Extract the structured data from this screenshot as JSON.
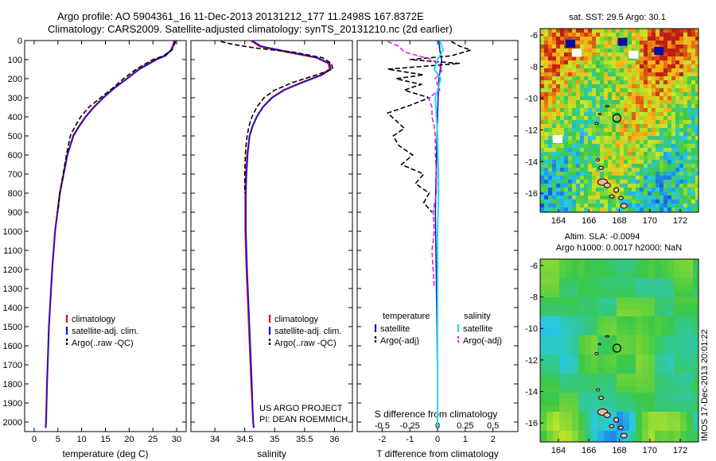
{
  "header": {
    "line1": "Argo profile: AO 5904361_16 11-Dec-2013 20131212_177 11.2498S 167.8372E",
    "line2": "Climatology: CARS2009. Satellite-adjusted climatology: synTS_20131210.nc (2d earlier)"
  },
  "stamp": "IMOS 17-Dec-2013 20:01:22",
  "colors": {
    "climatology": "#e01010",
    "satellite": "#1010e0",
    "argo": "#000000",
    "salinity_satellite": "#20e0e0",
    "salinity_argo": "#e020e0"
  },
  "chart_data": [
    {
      "id": "temperature",
      "type": "line",
      "xlabel": "temperature (deg C)",
      "ylabel": "",
      "xlim": [
        -2,
        32
      ],
      "ylim": [
        2050,
        0
      ],
      "xticks": [
        0,
        5,
        10,
        15,
        20,
        25,
        30
      ],
      "yticks": [
        0,
        100,
        200,
        300,
        400,
        500,
        600,
        700,
        800,
        900,
        1000,
        1100,
        1200,
        1300,
        1400,
        1500,
        1600,
        1700,
        1800,
        1900,
        2000
      ],
      "legend": {
        "placement": "lower-center",
        "entries": [
          "climatology",
          "satellite-adj. clim.",
          "Argo(..raw -QC)"
        ]
      },
      "series": [
        {
          "name": "climatology",
          "depth": [
            0,
            20,
            50,
            80,
            100,
            150,
            200,
            250,
            300,
            350,
            400,
            450,
            500,
            600,
            700,
            800,
            1000,
            1200,
            1500,
            1800,
            2000,
            2030
          ],
          "values": [
            29.5,
            29.3,
            28.8,
            27.5,
            25.5,
            22.0,
            19.5,
            16.8,
            14.5,
            12.5,
            10.8,
            9.4,
            8.2,
            7.0,
            6.2,
            5.4,
            4.4,
            3.8,
            3.1,
            2.7,
            2.5,
            2.4
          ]
        },
        {
          "name": "satellite-adj. clim.",
          "depth": [
            0,
            20,
            50,
            80,
            100,
            150,
            200,
            250,
            300,
            350,
            400,
            450,
            500,
            600,
            700,
            800,
            1000,
            1200,
            1500,
            1800,
            2000,
            2030
          ],
          "values": [
            29.6,
            29.4,
            28.9,
            27.7,
            25.8,
            22.2,
            19.6,
            16.9,
            14.6,
            12.6,
            10.9,
            9.5,
            8.3,
            7.0,
            6.2,
            5.4,
            4.4,
            3.8,
            3.1,
            2.7,
            2.5,
            2.4
          ]
        },
        {
          "name": "Argo(..raw -QC)",
          "depth": [
            5,
            20,
            50,
            80,
            100,
            150,
            200,
            250,
            300,
            350,
            400,
            450,
            500,
            600,
            700,
            800,
            900
          ],
          "values": [
            29.8,
            29.5,
            29.0,
            27.2,
            25.0,
            21.5,
            18.8,
            16.5,
            14.0,
            11.5,
            9.8,
            8.6,
            7.6,
            6.8,
            6.1,
            5.4,
            5.0
          ]
        }
      ]
    },
    {
      "id": "salinity",
      "type": "line",
      "xlabel": "salinity",
      "ylabel": "",
      "xlim": [
        33.6,
        36.3
      ],
      "ylim": [
        2050,
        0
      ],
      "xticks": [
        34,
        34.5,
        35,
        35.5,
        36
      ],
      "legend": {
        "placement": "lower-right",
        "entries": [
          "climatology",
          "satellite-adj. clim.",
          "Argo(..raw -QC)"
        ]
      },
      "annotation": [
        "US ARGO PROJECT",
        "PI: DEAN ROEMMICH"
      ],
      "series": [
        {
          "name": "climatology",
          "depth": [
            0,
            30,
            60,
            90,
            120,
            150,
            180,
            220,
            260,
            300,
            350,
            400,
            450,
            500,
            600,
            700,
            800,
            1000,
            1200,
            1500,
            1800,
            2000,
            2030
          ],
          "values": [
            34.6,
            34.75,
            35.2,
            35.7,
            35.9,
            35.92,
            35.78,
            35.45,
            35.15,
            34.95,
            34.8,
            34.7,
            34.63,
            34.58,
            34.54,
            34.52,
            34.51,
            34.51,
            34.53,
            34.57,
            34.61,
            34.64,
            34.65
          ]
        },
        {
          "name": "satellite-adj. clim.",
          "depth": [
            0,
            30,
            60,
            90,
            120,
            150,
            180,
            220,
            260,
            300,
            350,
            400,
            450,
            500,
            600,
            700,
            800,
            1000,
            1200,
            1500,
            1800,
            2000,
            2030
          ],
          "values": [
            34.62,
            34.78,
            35.25,
            35.72,
            35.92,
            35.94,
            35.8,
            35.47,
            35.16,
            34.96,
            34.8,
            34.7,
            34.63,
            34.58,
            34.55,
            34.53,
            34.52,
            34.52,
            34.54,
            34.58,
            34.62,
            34.64,
            34.65
          ]
        },
        {
          "name": "Argo(..raw -QC)",
          "depth": [
            5,
            20,
            40,
            60,
            90,
            120,
            150,
            180,
            220,
            260,
            300,
            350,
            400,
            450,
            500,
            550,
            600,
            700,
            800
          ],
          "values": [
            34.1,
            34.3,
            34.7,
            35.3,
            35.8,
            35.95,
            35.97,
            35.7,
            35.3,
            35.0,
            34.82,
            34.7,
            34.62,
            34.57,
            34.54,
            34.52,
            34.51,
            34.5,
            34.5
          ]
        }
      ]
    },
    {
      "id": "difference",
      "type": "line",
      "xlabel": "T difference from climatology",
      "xlabel2": "S difference from climatology",
      "xlim": [
        -2.9,
        2.9
      ],
      "ylim": [
        2050,
        0
      ],
      "xticks": [
        -2,
        -1,
        0,
        1,
        2
      ],
      "xticks2_labels": [
        "-0.5",
        "-0.25",
        "0",
        "0.25",
        "0.5"
      ],
      "legend": {
        "placement": "lower-center",
        "temperature_title": "temperature",
        "salinity_title": "salinity",
        "entries": [
          "satellite",
          "Argo(-adj)",
          "satellite",
          "Argo(-adj)"
        ]
      },
      "series": [
        {
          "name": "temperature satellite",
          "depth": [
            0,
            50,
            100,
            150,
            200,
            300,
            400,
            500,
            700,
            900,
            1200,
            1500,
            1800,
            2030
          ],
          "values": [
            0.05,
            0.08,
            0.15,
            0.1,
            0.05,
            0.02,
            0.0,
            -0.02,
            -0.05,
            -0.08,
            -0.05,
            -0.02,
            0.0,
            0.0
          ]
        },
        {
          "name": "temperature Argo(-adj)",
          "depth": [
            5,
            30,
            50,
            80,
            100,
            120,
            150,
            180,
            200,
            230,
            260,
            300,
            340,
            380,
            420,
            460,
            500,
            550,
            600,
            650,
            700,
            750,
            800,
            850,
            900
          ],
          "values": [
            0.5,
            0.8,
            1.2,
            0.5,
            -1.0,
            0.8,
            -1.8,
            -0.5,
            -1.5,
            -0.6,
            -1.2,
            -0.3,
            -1.0,
            -1.8,
            -1.5,
            -1.2,
            -1.6,
            -1.4,
            -0.9,
            -1.3,
            -0.5,
            -0.8,
            -0.3,
            -0.5,
            -0.2
          ]
        },
        {
          "name": "salinity satellite",
          "depth": [
            0,
            50,
            100,
            150,
            200,
            300,
            500,
            800,
            1000,
            1500,
            2030
          ],
          "values": [
            0.02,
            0.05,
            0.0,
            -0.03,
            0.03,
            -0.02,
            0.0,
            0.01,
            0.0,
            0.0,
            0.0
          ]
        },
        {
          "name": "salinity Argo(-adj)",
          "depth": [
            5,
            30,
            60,
            100,
            150,
            200,
            260,
            300,
            350,
            400,
            450,
            500,
            600,
            700,
            800,
            900,
            1000,
            1100,
            1200,
            1300
          ],
          "values": [
            -0.45,
            -0.35,
            -0.3,
            -0.05,
            0.05,
            -0.02,
            0.02,
            -0.08,
            -0.05,
            -0.05,
            -0.03,
            -0.02,
            -0.02,
            -0.01,
            -0.01,
            -0.04,
            -0.03,
            -0.05,
            -0.04,
            -0.03
          ]
        }
      ]
    },
    {
      "id": "sst-map",
      "type": "heatmap",
      "title": "sat. SST: 29.5 Argo: 30.1",
      "xlim": [
        162.8,
        173.2
      ],
      "ylim": [
        -17.2,
        -5.6
      ],
      "xticks": [
        164,
        166,
        168,
        170,
        172
      ],
      "yticks": [
        -6,
        -8,
        -10,
        -12,
        -14,
        -16
      ],
      "marker": {
        "lon": 167.84,
        "lat": -11.25
      }
    },
    {
      "id": "sla-map",
      "type": "heatmap",
      "title": "Altim. SLA: -0.0094",
      "subtitle": "Argo h1000: 0.0017 h2000: NaN",
      "xlim": [
        162.8,
        173.2
      ],
      "ylim": [
        -17.2,
        -5.6
      ],
      "xticks": [
        164,
        166,
        168,
        170,
        172
      ],
      "yticks": [
        -6,
        -8,
        -10,
        -12,
        -14,
        -16
      ],
      "marker": {
        "lon": 167.84,
        "lat": -11.25
      }
    }
  ]
}
